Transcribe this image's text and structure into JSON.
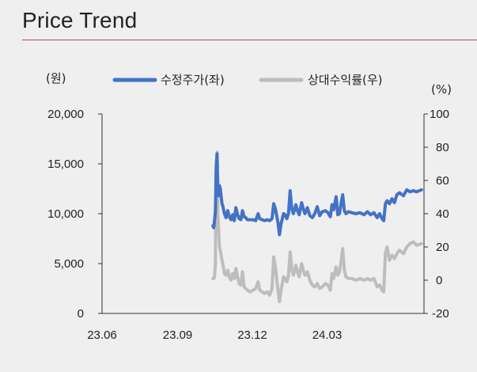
{
  "page": {
    "title": "Price Trend"
  },
  "chart_data": {
    "type": "line",
    "title": "",
    "y_left_unit": "(원)",
    "y_right_unit": "(%)",
    "ylim_left": [
      0,
      20000
    ],
    "ylim_right": [
      -20,
      100
    ],
    "y_left_ticks": [
      "20,000",
      "15,000",
      "10,000",
      "5,000",
      "0"
    ],
    "y_right_ticks": [
      "100",
      "80",
      "60",
      "40",
      "20",
      "0",
      "-20"
    ],
    "x_ticks": [
      "23.06",
      "23.09",
      "23.12",
      "24.03"
    ],
    "x_tick_dates": [
      "2023-06-01",
      "2023-09-01",
      "2023-12-01",
      "2024-03-01"
    ],
    "xlim": [
      "2023-06-01",
      "2024-06-27"
    ],
    "legend_position": "top",
    "grid": false,
    "series": [
      {
        "name": "수정주가(좌)",
        "axis": "left",
        "color": "#4472c4",
        "points": [
          [
            "2023-10-14",
            8800
          ],
          [
            "2023-10-15",
            8600
          ],
          [
            "2023-10-16",
            9300
          ],
          [
            "2023-10-17",
            10200
          ],
          [
            "2023-10-18",
            14500
          ],
          [
            "2023-10-19",
            16000
          ],
          [
            "2023-10-20",
            12500
          ],
          [
            "2023-10-21",
            11800
          ],
          [
            "2023-10-22",
            12800
          ],
          [
            "2023-10-23",
            12500
          ],
          [
            "2023-10-25",
            11000
          ],
          [
            "2023-10-26",
            10800
          ],
          [
            "2023-10-28",
            10000
          ],
          [
            "2023-10-30",
            9600
          ],
          [
            "2023-11-01",
            10300
          ],
          [
            "2023-11-03",
            9700
          ],
          [
            "2023-11-05",
            9400
          ],
          [
            "2023-11-07",
            9900
          ],
          [
            "2023-11-09",
            9300
          ],
          [
            "2023-11-11",
            10600
          ],
          [
            "2023-11-13",
            9900
          ],
          [
            "2023-11-15",
            9500
          ],
          [
            "2023-11-17",
            9400
          ],
          [
            "2023-11-19",
            10300
          ],
          [
            "2023-11-21",
            9700
          ],
          [
            "2023-11-23",
            9600
          ],
          [
            "2023-11-25",
            9400
          ],
          [
            "2023-11-28",
            9400
          ],
          [
            "2023-12-02",
            9400
          ],
          [
            "2023-12-05",
            9300
          ],
          [
            "2023-12-08",
            10000
          ],
          [
            "2023-12-10",
            9500
          ],
          [
            "2023-12-13",
            9400
          ],
          [
            "2023-12-16",
            9300
          ],
          [
            "2023-12-19",
            9400
          ],
          [
            "2023-12-22",
            9300
          ],
          [
            "2023-12-25",
            9500
          ],
          [
            "2023-12-27",
            11000
          ],
          [
            "2023-12-29",
            10500
          ],
          [
            "2024-01-01",
            9200
          ],
          [
            "2024-01-03",
            7900
          ],
          [
            "2024-01-05",
            9000
          ],
          [
            "2024-01-08",
            10000
          ],
          [
            "2024-01-10",
            9900
          ],
          [
            "2024-01-12",
            9500
          ],
          [
            "2024-01-14",
            10000
          ],
          [
            "2024-01-16",
            12300
          ],
          [
            "2024-01-18",
            10500
          ],
          [
            "2024-01-20",
            10000
          ],
          [
            "2024-01-23",
            10900
          ],
          [
            "2024-01-25",
            10300
          ],
          [
            "2024-01-27",
            9900
          ],
          [
            "2024-01-30",
            11100
          ],
          [
            "2024-02-01",
            10500
          ],
          [
            "2024-02-03",
            10000
          ],
          [
            "2024-02-06",
            10600
          ],
          [
            "2024-02-09",
            9800
          ],
          [
            "2024-02-12",
            9600
          ],
          [
            "2024-02-15",
            10000
          ],
          [
            "2024-02-18",
            10700
          ],
          [
            "2024-02-21",
            9800
          ],
          [
            "2024-02-24",
            10200
          ],
          [
            "2024-02-28",
            10300
          ],
          [
            "2024-03-02",
            10100
          ],
          [
            "2024-03-05",
            9700
          ],
          [
            "2024-03-07",
            10900
          ],
          [
            "2024-03-09",
            10400
          ],
          [
            "2024-03-12",
            11700
          ],
          [
            "2024-03-14",
            9900
          ],
          [
            "2024-03-16",
            10000
          ],
          [
            "2024-03-18",
            11000
          ],
          [
            "2024-03-20",
            11900
          ],
          [
            "2024-03-22",
            10300
          ],
          [
            "2024-03-24",
            10000
          ],
          [
            "2024-03-27",
            10200
          ],
          [
            "2024-03-31",
            10100
          ],
          [
            "2024-04-05",
            10000
          ],
          [
            "2024-04-10",
            10100
          ],
          [
            "2024-04-15",
            9900
          ],
          [
            "2024-04-19",
            10200
          ],
          [
            "2024-04-23",
            9900
          ],
          [
            "2024-04-27",
            10100
          ],
          [
            "2024-05-01",
            9600
          ],
          [
            "2024-05-04",
            10000
          ],
          [
            "2024-05-07",
            9500
          ],
          [
            "2024-05-09",
            9300
          ],
          [
            "2024-05-11",
            11000
          ],
          [
            "2024-05-13",
            11300
          ],
          [
            "2024-05-16",
            11000
          ],
          [
            "2024-05-19",
            11500
          ],
          [
            "2024-05-22",
            11100
          ],
          [
            "2024-05-25",
            11900
          ],
          [
            "2024-05-28",
            12100
          ],
          [
            "2024-06-02",
            11800
          ],
          [
            "2024-06-06",
            12400
          ],
          [
            "2024-06-10",
            12200
          ],
          [
            "2024-06-14",
            12300
          ],
          [
            "2024-06-18",
            12200
          ],
          [
            "2024-06-24",
            12400
          ]
        ]
      },
      {
        "name": "상대수익률(우)",
        "axis": "right",
        "color": "#bdbdbd",
        "points": [
          [
            "2023-10-14",
            1
          ],
          [
            "2023-10-15",
            1
          ],
          [
            "2023-10-16",
            2
          ],
          [
            "2023-10-17",
            10
          ],
          [
            "2023-10-18",
            70
          ],
          [
            "2023-10-19",
            77
          ],
          [
            "2023-10-20",
            40
          ],
          [
            "2023-10-21",
            30
          ],
          [
            "2023-10-22",
            20
          ],
          [
            "2023-10-23",
            18
          ],
          [
            "2023-10-25",
            12
          ],
          [
            "2023-10-26",
            10
          ],
          [
            "2023-10-28",
            4
          ],
          [
            "2023-10-30",
            3
          ],
          [
            "2023-11-01",
            6
          ],
          [
            "2023-11-03",
            2
          ],
          [
            "2023-11-05",
            0
          ],
          [
            "2023-11-07",
            4
          ],
          [
            "2023-11-09",
            1
          ],
          [
            "2023-11-11",
            7
          ],
          [
            "2023-11-13",
            2
          ],
          [
            "2023-11-15",
            -2
          ],
          [
            "2023-11-17",
            -3
          ],
          [
            "2023-11-19",
            5
          ],
          [
            "2023-11-21",
            -4
          ],
          [
            "2023-11-23",
            -5
          ],
          [
            "2023-11-25",
            -6
          ],
          [
            "2023-11-28",
            -7
          ],
          [
            "2023-12-02",
            -6
          ],
          [
            "2023-12-05",
            -5
          ],
          [
            "2023-12-08",
            -1
          ],
          [
            "2023-12-10",
            -6
          ],
          [
            "2023-12-13",
            -7
          ],
          [
            "2023-12-16",
            -8
          ],
          [
            "2023-12-19",
            -7
          ],
          [
            "2023-12-22",
            -9
          ],
          [
            "2023-12-25",
            -5
          ],
          [
            "2023-12-27",
            14
          ],
          [
            "2023-12-29",
            8
          ],
          [
            "2024-01-01",
            -5
          ],
          [
            "2024-01-03",
            -13
          ],
          [
            "2024-01-05",
            -6
          ],
          [
            "2024-01-08",
            2
          ],
          [
            "2024-01-10",
            1
          ],
          [
            "2024-01-12",
            -1
          ],
          [
            "2024-01-14",
            3
          ],
          [
            "2024-01-16",
            17
          ],
          [
            "2024-01-18",
            7
          ],
          [
            "2024-01-20",
            3
          ],
          [
            "2024-01-23",
            9
          ],
          [
            "2024-01-25",
            5
          ],
          [
            "2024-01-27",
            2
          ],
          [
            "2024-01-30",
            10
          ],
          [
            "2024-02-01",
            6
          ],
          [
            "2024-02-03",
            3
          ],
          [
            "2024-02-06",
            5
          ],
          [
            "2024-02-09",
            0
          ],
          [
            "2024-02-12",
            -3
          ],
          [
            "2024-02-15",
            -4
          ],
          [
            "2024-02-18",
            -2
          ],
          [
            "2024-02-21",
            -5
          ],
          [
            "2024-02-24",
            -4
          ],
          [
            "2024-02-28",
            -2
          ],
          [
            "2024-03-02",
            -3
          ],
          [
            "2024-03-05",
            -6
          ],
          [
            "2024-03-07",
            4
          ],
          [
            "2024-03-09",
            1
          ],
          [
            "2024-03-12",
            8
          ],
          [
            "2024-03-14",
            3
          ],
          [
            "2024-03-16",
            5
          ],
          [
            "2024-03-18",
            11
          ],
          [
            "2024-03-20",
            19
          ],
          [
            "2024-03-22",
            6
          ],
          [
            "2024-03-24",
            2
          ],
          [
            "2024-03-27",
            1
          ],
          [
            "2024-03-31",
            1
          ],
          [
            "2024-04-05",
            0
          ],
          [
            "2024-04-10",
            1
          ],
          [
            "2024-04-15",
            0
          ],
          [
            "2024-04-19",
            1
          ],
          [
            "2024-04-23",
            0
          ],
          [
            "2024-04-27",
            1
          ],
          [
            "2024-05-01",
            -4
          ],
          [
            "2024-05-04",
            -3
          ],
          [
            "2024-05-07",
            -6
          ],
          [
            "2024-05-09",
            -7
          ],
          [
            "2024-05-11",
            16
          ],
          [
            "2024-05-13",
            20
          ],
          [
            "2024-05-16",
            12
          ],
          [
            "2024-05-19",
            15
          ],
          [
            "2024-05-22",
            13
          ],
          [
            "2024-05-25",
            16
          ],
          [
            "2024-05-28",
            18
          ],
          [
            "2024-06-02",
            16
          ],
          [
            "2024-06-06",
            20
          ],
          [
            "2024-06-10",
            22
          ],
          [
            "2024-06-14",
            23
          ],
          [
            "2024-06-18",
            21
          ],
          [
            "2024-06-24",
            22
          ]
        ]
      }
    ]
  }
}
